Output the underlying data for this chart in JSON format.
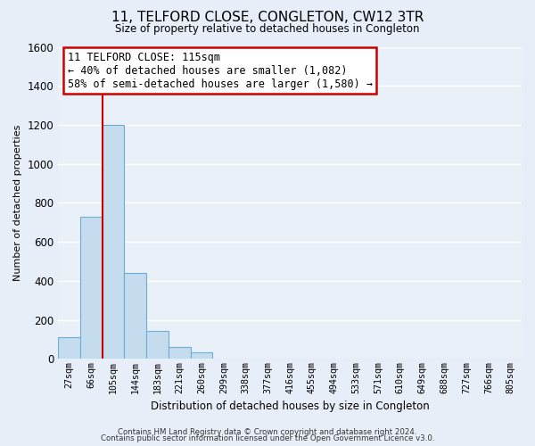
{
  "title": "11, TELFORD CLOSE, CONGLETON, CW12 3TR",
  "subtitle": "Size of property relative to detached houses in Congleton",
  "xlabel": "Distribution of detached houses by size in Congleton",
  "ylabel": "Number of detached properties",
  "bar_labels": [
    "27sqm",
    "66sqm",
    "105sqm",
    "144sqm",
    "183sqm",
    "221sqm",
    "260sqm",
    "299sqm",
    "338sqm",
    "377sqm",
    "416sqm",
    "455sqm",
    "494sqm",
    "533sqm",
    "571sqm",
    "610sqm",
    "649sqm",
    "688sqm",
    "727sqm",
    "766sqm",
    "805sqm"
  ],
  "bar_values": [
    110,
    730,
    1200,
    440,
    145,
    60,
    35,
    0,
    0,
    0,
    0,
    0,
    0,
    0,
    0,
    0,
    0,
    0,
    0,
    0,
    0
  ],
  "bar_color": "#c5dcef",
  "bar_edge_color": "#6aaed6",
  "ylim": [
    0,
    1600
  ],
  "yticks": [
    0,
    200,
    400,
    600,
    800,
    1000,
    1200,
    1400,
    1600
  ],
  "vline_x": 2.0,
  "vline_color": "#cc0000",
  "annotation_title": "11 TELFORD CLOSE: 115sqm",
  "annotation_line1": "← 40% of detached houses are smaller (1,082)",
  "annotation_line2": "58% of semi-detached houses are larger (1,580) →",
  "annotation_box_color": "#ffffff",
  "annotation_box_edge": "#cc0000",
  "footer_line1": "Contains HM Land Registry data © Crown copyright and database right 2024.",
  "footer_line2": "Contains public sector information licensed under the Open Government Licence v3.0.",
  "background_color": "#e8eef8",
  "plot_bg_color": "#eaf0f8",
  "grid_color": "#ffffff"
}
